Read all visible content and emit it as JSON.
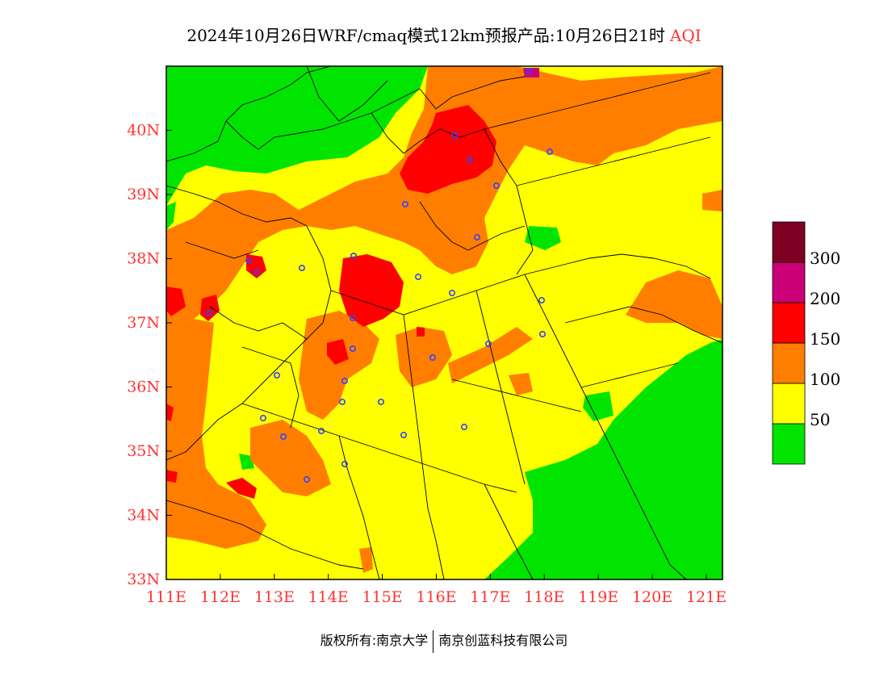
{
  "title": {
    "main": "2024年10月26日WRF/cmaq模式12km预报产品:10月26日21时",
    "variable": "AQI"
  },
  "map": {
    "x_ticks": [
      "111E",
      "112E",
      "113E",
      "114E",
      "115E",
      "116E",
      "117E",
      "118E",
      "119E",
      "120E",
      "121E"
    ],
    "y_ticks": [
      "33N",
      "34N",
      "35N",
      "36N",
      "37N",
      "38N",
      "39N",
      "40N"
    ],
    "lon_range": [
      111,
      121.3
    ],
    "lat_range": [
      33,
      41
    ],
    "tick_color": "#ff3333"
  },
  "legend": {
    "labels": [
      "50",
      "100",
      "150",
      "200",
      "300"
    ],
    "colors": [
      "#00e400",
      "#ffff00",
      "#ff7e00",
      "#ff0000",
      "#cc0077",
      "#7e0023"
    ]
  },
  "colors": {
    "good": "#00e400",
    "moderate": "#ffff00",
    "usg": "#ff7e00",
    "unhealthy": "#ff0000",
    "very_unhealthy": "#cc0077",
    "hazardous": "#7e0023",
    "station_marker": "#3344ff",
    "boundary": "#000000"
  },
  "footer": {
    "left": "版权所有:南京大学",
    "right": "南京创蓝科技有限公司"
  }
}
